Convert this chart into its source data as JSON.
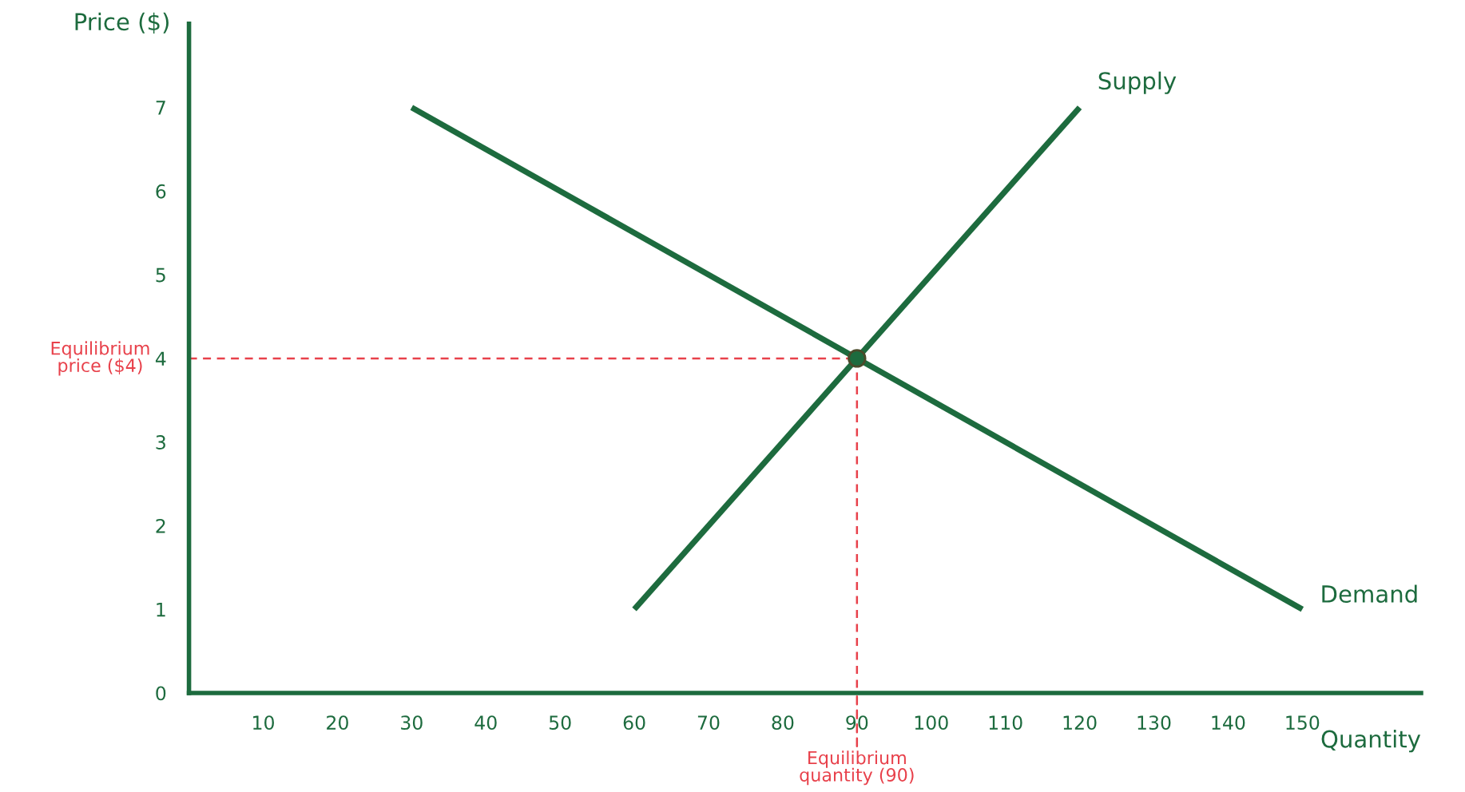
{
  "chart_data": {
    "type": "line",
    "xlabel": "Quantity",
    "ylabel": "Price ($)",
    "xlim": [
      0,
      166
    ],
    "ylim": [
      0,
      8
    ],
    "xticks": [
      10,
      20,
      30,
      40,
      50,
      60,
      70,
      80,
      90,
      100,
      110,
      120,
      130,
      140,
      150
    ],
    "yticks": [
      0,
      1,
      2,
      3,
      4,
      5,
      6,
      7
    ],
    "grid": false,
    "legend": false,
    "marker": "none",
    "line_style": "solid",
    "series": [
      {
        "name": "Demand",
        "color": "#1d6b3e",
        "x": [
          30,
          150
        ],
        "values": [
          7,
          1
        ]
      },
      {
        "name": "Supply",
        "color": "#1d6b3e",
        "x": [
          60,
          120
        ],
        "values": [
          1,
          7
        ]
      },
      {
        "color": "#e8414b",
        "x": [
          0,
          90
        ],
        "values": [
          4,
          4
        ],
        "line_style": "dashed"
      },
      {
        "color": "#e8414b",
        "x": [
          90,
          90
        ],
        "values": [
          4,
          0
        ],
        "line_style": "dashed"
      },
      {
        "type": "scatter",
        "color": "#1d6b3e",
        "x": [
          90
        ],
        "values": [
          4
        ],
        "marker": "circle"
      }
    ],
    "annotations": [
      {
        "text": "Equilibrium\nprice ($4)",
        "x": 0,
        "y": 4
      },
      {
        "text": "Equilibrium\nquantity (90)",
        "x": 90,
        "y": 0
      }
    ]
  }
}
